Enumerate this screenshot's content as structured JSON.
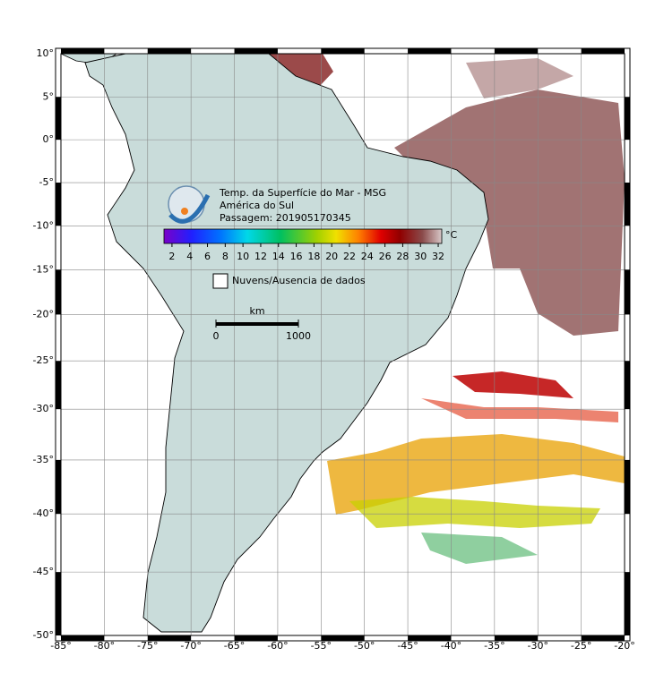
{
  "map": {
    "type": "map",
    "projection": "mercator",
    "xlim": [
      -85,
      -20
    ],
    "ylim": [
      -50,
      10
    ],
    "grid": true,
    "xticks": [
      {
        "value": -85,
        "label": "-85°"
      },
      {
        "value": -80,
        "label": "-80°"
      },
      {
        "value": -75,
        "label": "-75°"
      },
      {
        "value": -70,
        "label": "-70°"
      },
      {
        "value": -65,
        "label": "-65°"
      },
      {
        "value": -60,
        "label": "-60°"
      },
      {
        "value": -55,
        "label": "-55°"
      },
      {
        "value": -50,
        "label": "-50°"
      },
      {
        "value": -45,
        "label": "-45°"
      },
      {
        "value": -40,
        "label": "-40°"
      },
      {
        "value": -35,
        "label": "-35°"
      },
      {
        "value": -30,
        "label": "-30°"
      },
      {
        "value": -25,
        "label": "-25°"
      },
      {
        "value": -20,
        "label": "-20°"
      }
    ],
    "yticks": [
      {
        "value": 10,
        "label": "10°"
      },
      {
        "value": 5,
        "label": "5°"
      },
      {
        "value": 0,
        "label": "0°"
      },
      {
        "value": -5,
        "label": "-5°"
      },
      {
        "value": -10,
        "label": "-10°"
      },
      {
        "value": -15,
        "label": "-15°"
      },
      {
        "value": -20,
        "label": "-20°"
      },
      {
        "value": -25,
        "label": "-25°"
      },
      {
        "value": -30,
        "label": "-30°"
      },
      {
        "value": -35,
        "label": "-35°"
      },
      {
        "value": -40,
        "label": "-40°"
      },
      {
        "value": -45,
        "label": "-45°"
      },
      {
        "value": -50,
        "label": "-50°"
      }
    ]
  },
  "title": {
    "lines": [
      "Temp. da Superfície do Mar - MSG",
      "América do Sul",
      "Passagem: 201905170345"
    ]
  },
  "colorbar": {
    "unit": "°C",
    "lim": [
      1.1,
      32.4
    ],
    "ticks": [
      2,
      4,
      6,
      8,
      10,
      12,
      14,
      16,
      18,
      20,
      22,
      24,
      26,
      28,
      30,
      32
    ]
  },
  "legend": {
    "label": "Nuvens/Ausencia de dados"
  },
  "scale": {
    "unit": "km",
    "ticks": [
      0,
      1000
    ]
  }
}
